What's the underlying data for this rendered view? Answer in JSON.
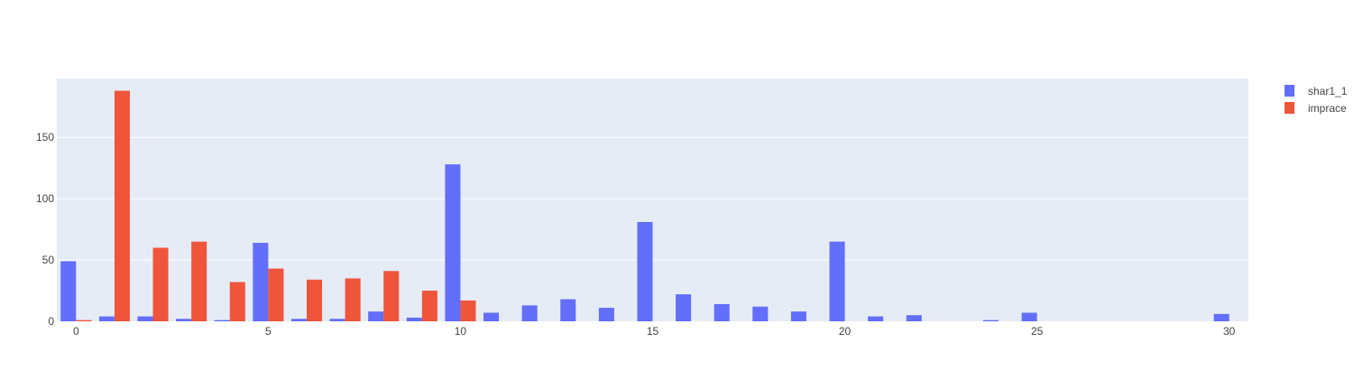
{
  "chart_data": {
    "type": "bar",
    "barmode": "group",
    "title": "",
    "xlabel": "",
    "ylabel": "",
    "xlim": [
      -0.5,
      30.5
    ],
    "ylim": [
      0,
      198
    ],
    "x_ticks": [
      0,
      5,
      10,
      15,
      20,
      25,
      30
    ],
    "y_ticks": [
      0,
      50,
      100,
      150
    ],
    "grid": true,
    "legend_position": "top-right",
    "plot_background": "#E5ECF6",
    "series": [
      {
        "name": "shar1_1",
        "color": "#636EFA",
        "x": [
          0,
          1,
          2,
          3,
          4,
          5,
          6,
          7,
          8,
          9,
          10,
          11,
          12,
          13,
          14,
          15,
          16,
          17,
          18,
          19,
          20,
          21,
          22,
          23,
          24,
          25,
          26,
          27,
          28,
          29,
          30
        ],
        "values": [
          49,
          4,
          4,
          2,
          1,
          64,
          2,
          2,
          8,
          3,
          128,
          7,
          13,
          18,
          11,
          81,
          22,
          14,
          12,
          8,
          65,
          4,
          5,
          0,
          1,
          7,
          0,
          0,
          0,
          0,
          6
        ]
      },
      {
        "name": "imprace",
        "color": "#EF553B",
        "x": [
          0,
          1,
          2,
          3,
          4,
          5,
          6,
          7,
          8,
          9,
          10
        ],
        "values": [
          1,
          188,
          60,
          65,
          32,
          43,
          34,
          35,
          41,
          25,
          17
        ]
      }
    ]
  }
}
